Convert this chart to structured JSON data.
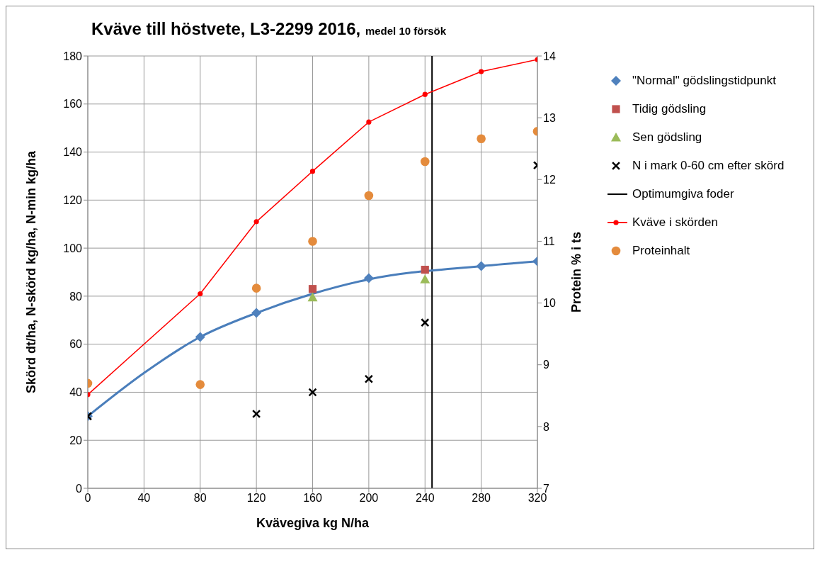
{
  "chart_data": {
    "type": "scatter",
    "title": "Kväve till höstvete, L3-2299 2016,",
    "subtitle": "medel 10 försök",
    "xlabel": "Kvävegiva kg N/ha",
    "ylabel": "Skörd dt/ha, N-skörd kg/ha, N-min kg/ha",
    "y2label": "Protein % i ts",
    "x": [
      0,
      80,
      120,
      160,
      200,
      240,
      280,
      320
    ],
    "xlim": [
      0,
      320
    ],
    "xticks": [
      0,
      40,
      80,
      120,
      160,
      200,
      240,
      280,
      320
    ],
    "ylim": [
      0,
      180
    ],
    "yticks": [
      0,
      20,
      40,
      60,
      80,
      100,
      120,
      140,
      160,
      180
    ],
    "y2lim": [
      7,
      14
    ],
    "y2ticks": [
      7,
      8,
      9,
      10,
      11,
      12,
      13,
      14
    ],
    "grid": true,
    "legend": "right",
    "series": [
      {
        "name": "\"Normal\" gödslingstidpunkt",
        "marker": "diamond",
        "color": "#4f81bd",
        "values": [
          30,
          63,
          73,
          null,
          87.5,
          null,
          92.5,
          94.5
        ]
      },
      {
        "name": "Tidig gödsling",
        "marker": "square",
        "color": "#c0504d",
        "values": [
          null,
          null,
          null,
          83,
          null,
          91,
          null,
          null
        ]
      },
      {
        "name": "Sen gödsling",
        "marker": "triangle",
        "color": "#9bbb59",
        "values": [
          null,
          null,
          null,
          79.5,
          null,
          87,
          null,
          null
        ]
      },
      {
        "name": "N i mark 0-60 cm efter skörd",
        "marker": "cross",
        "color": "#000000",
        "values": [
          30,
          null,
          31,
          40,
          45.5,
          69,
          null,
          134.5
        ]
      },
      {
        "name": "Optimumgiva foder",
        "type": "line",
        "marker": "none",
        "color": "#000000",
        "x": [
          245,
          245
        ],
        "values": [
          0,
          180
        ]
      },
      {
        "name": "Kväve i skörden",
        "type": "line",
        "marker": "circle",
        "color": "#ff0000",
        "values": [
          39,
          81,
          111,
          132,
          152.5,
          164,
          173.5,
          178.5
        ]
      },
      {
        "name": "Proteinhalt",
        "marker": "circle",
        "color": "#e48b3c",
        "axis": "y2",
        "values": [
          8.7,
          8.68,
          10.24,
          11.0,
          11.74,
          12.29,
          12.66,
          12.78
        ]
      },
      {
        "type": "line",
        "marker": "none",
        "color": "#4a7ebb",
        "x": [
          0,
          40,
          80,
          120,
          160,
          200,
          280,
          320
        ],
        "values": [
          30,
          48,
          63,
          73,
          81,
          87,
          92.5,
          94.5
        ]
      }
    ]
  }
}
